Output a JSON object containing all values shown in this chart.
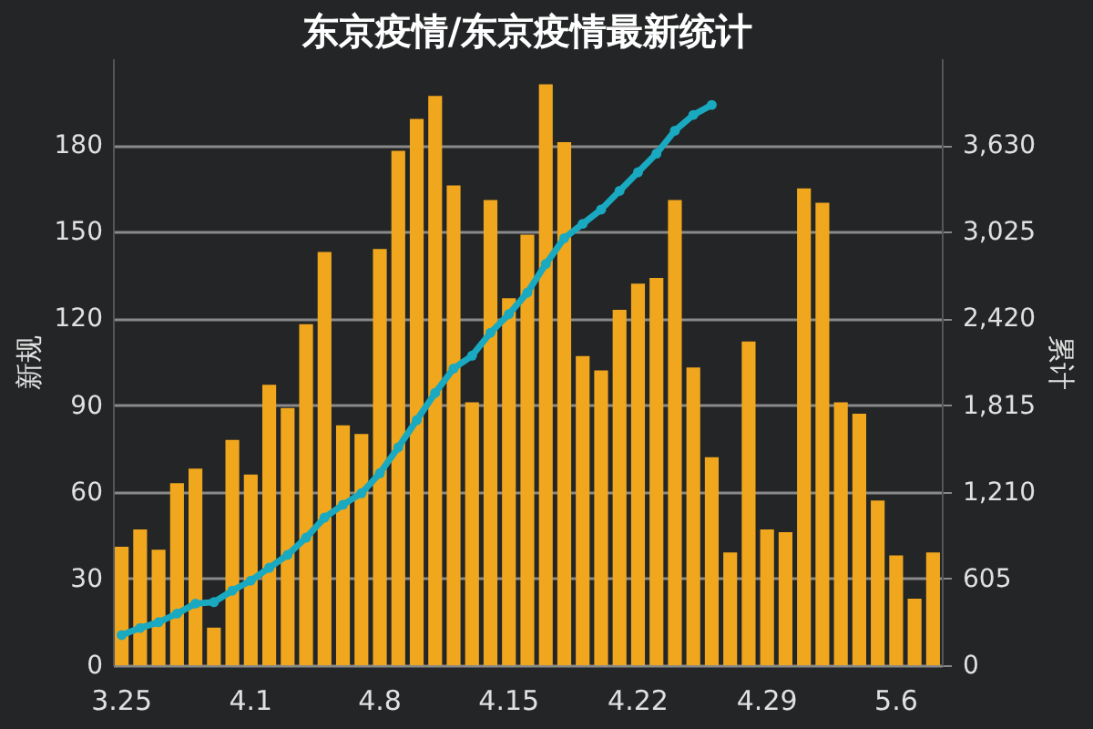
{
  "chart_data": {
    "type": "bar",
    "title": "东京疫情/东京疫情最新统计",
    "ylabel": "新规",
    "y2label": "累计",
    "categories": [
      "3.25",
      null,
      null,
      null,
      null,
      null,
      null,
      "4.1",
      null,
      null,
      null,
      null,
      null,
      null,
      "4.8",
      null,
      null,
      null,
      null,
      null,
      null,
      "4.15",
      null,
      null,
      null,
      null,
      null,
      null,
      "4.22",
      null,
      null,
      null,
      null,
      null,
      null,
      "4.29",
      null,
      null,
      null,
      null,
      null,
      null,
      "5.6",
      null,
      null
    ],
    "series": [
      {
        "color": "#f0a71e",
        "values": [
          41,
          47,
          40,
          63,
          68,
          13,
          78,
          66,
          97,
          89,
          118,
          143,
          83,
          80,
          144,
          178,
          189,
          197,
          166,
          91,
          161,
          127,
          149,
          201,
          181,
          107,
          102,
          123,
          132,
          134,
          161,
          103,
          72,
          39,
          112,
          47,
          46,
          165,
          160,
          91,
          87,
          57,
          38,
          23,
          39
        ]
      },
      {
        "type": "line",
        "axis": "y2",
        "color": "#19a9c0",
        "marker": "circle",
        "line_style": "solid",
        "values": [
          210,
          260,
          300,
          360,
          430,
          440,
          520,
          590,
          680,
          770,
          890,
          1030,
          1120,
          1200,
          1340,
          1520,
          1710,
          1900,
          2070,
          2160,
          2320,
          2450,
          2600,
          2800,
          2980,
          3080,
          3180,
          3310,
          3440,
          3570,
          3730,
          3840,
          3910,
          null,
          null,
          null,
          null,
          null,
          null,
          null,
          null,
          null,
          null,
          null,
          null
        ]
      }
    ],
    "ylim": [
      0,
      210
    ],
    "yticks": [
      0,
      30,
      60,
      90,
      120,
      150,
      180
    ],
    "y2lim": [
      0,
      4235
    ],
    "y2ticks": [
      0,
      605,
      {
        "value": 1210,
        "label": "1,210"
      },
      {
        "value": 1815,
        "label": "1,815"
      },
      {
        "value": 2420,
        "label": "2,420"
      },
      {
        "value": 3025,
        "label": "3,025"
      },
      {
        "value": 3630,
        "label": "3,630"
      }
    ],
    "grid": "y"
  }
}
